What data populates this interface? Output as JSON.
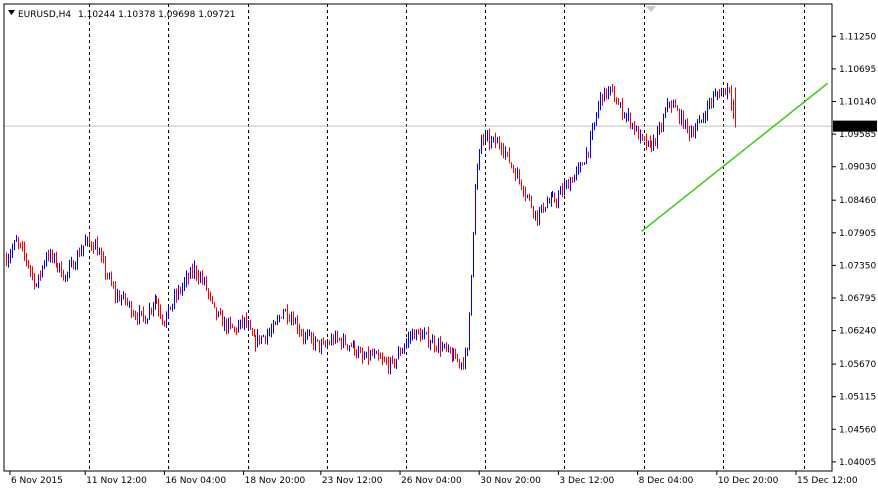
{
  "header": {
    "symbol": "EURUSD,H4",
    "ohlc": "1.10244 1.10378 1.09698 1.09721"
  },
  "price_tag": {
    "value": "1.09721"
  },
  "colors": {
    "bull": "#0000ff",
    "bear": "#ff0000",
    "trendline": "#44cc22",
    "grid": "#000000",
    "price_line": "#c0c0c0",
    "price_tag_bg": "#000000",
    "price_tag_text": "#ffffff"
  },
  "chart_data": {
    "type": "candlestick",
    "title": "EURUSD,H4",
    "ylim": [
      1.0385,
      1.118
    ],
    "y_ticks": [
      "1.11250",
      "1.10695",
      "1.10140",
      "1.09585",
      "1.09030",
      "1.08460",
      "1.07905",
      "1.07350",
      "1.06795",
      "1.06240",
      "1.05670",
      "1.05115",
      "1.04560",
      "1.04005"
    ],
    "x_ticks": [
      "6 Nov 2015",
      "11 Nov 12:00",
      "16 Nov 04:00",
      "18 Nov 20:00",
      "23 Nov 12:00",
      "26 Nov 04:00",
      "30 Nov 20:00",
      "3 Dec 12:00",
      "8 Dec 04:00",
      "10 Dec 20:00",
      "15 Dec 12:00"
    ],
    "x_tick_pos": [
      2,
      40,
      80,
      120,
      159,
      199,
      239,
      279,
      319,
      359,
      399
    ],
    "vertical_grid_at": [
      42,
      82,
      122,
      162,
      202,
      242,
      282,
      322,
      362,
      403
    ],
    "bar_count": 430,
    "current_price": 1.09721,
    "trendline": {
      "start": {
        "bar": 321,
        "price": 1.0793
      },
      "end": {
        "bar": 415,
        "price": 1.1045
      }
    },
    "anchors": [
      [
        0,
        1.0747
      ],
      [
        5,
        1.0775
      ],
      [
        10,
        1.0745
      ],
      [
        15,
        1.07
      ],
      [
        20,
        1.0755
      ],
      [
        25,
        1.074
      ],
      [
        30,
        1.0715
      ],
      [
        35,
        1.0745
      ],
      [
        40,
        1.0775
      ],
      [
        45,
        1.077
      ],
      [
        50,
        1.0725
      ],
      [
        55,
        1.0685
      ],
      [
        60,
        1.0675
      ],
      [
        65,
        1.0652
      ],
      [
        70,
        1.0645
      ],
      [
        75,
        1.068
      ],
      [
        80,
        1.064
      ],
      [
        85,
        1.0678
      ],
      [
        90,
        1.0705
      ],
      [
        95,
        1.0728
      ],
      [
        100,
        1.0705
      ],
      [
        105,
        1.0655
      ],
      [
        110,
        1.0635
      ],
      [
        115,
        1.0625
      ],
      [
        120,
        1.064
      ],
      [
        125,
        1.0605
      ],
      [
        130,
        1.0615
      ],
      [
        135,
        1.0625
      ],
      [
        140,
        1.066
      ],
      [
        145,
        1.0645
      ],
      [
        150,
        1.0615
      ],
      [
        155,
        1.0605
      ],
      [
        160,
        1.0595
      ],
      [
        165,
        1.061
      ],
      [
        170,
        1.0605
      ],
      [
        175,
        1.0598
      ],
      [
        180,
        1.0575
      ],
      [
        185,
        1.0582
      ],
      [
        190,
        1.057
      ],
      [
        195,
        1.0565
      ],
      [
        200,
        1.0595
      ],
      [
        205,
        1.062
      ],
      [
        210,
        1.0615
      ],
      [
        215,
        1.0605
      ],
      [
        220,
        1.0595
      ],
      [
        225,
        1.058
      ],
      [
        230,
        1.057
      ],
      [
        233,
        1.0585
      ],
      [
        237,
        1.0868
      ],
      [
        240,
        1.0952
      ],
      [
        245,
        1.0945
      ],
      [
        250,
        1.0942
      ],
      [
        255,
        1.0905
      ],
      [
        260,
        1.0875
      ],
      [
        265,
        1.0838
      ],
      [
        268,
        1.0818
      ],
      [
        272,
        1.084
      ],
      [
        278,
        1.0848
      ],
      [
        285,
        1.088
      ],
      [
        290,
        1.09
      ],
      [
        295,
        1.0945
      ],
      [
        300,
        1.1022
      ],
      [
        305,
        1.1032
      ],
      [
        310,
        1.1002
      ],
      [
        315,
        1.0982
      ],
      [
        320,
        1.095
      ],
      [
        325,
        1.0935
      ],
      [
        330,
        1.0962
      ],
      [
        335,
        1.1015
      ],
      [
        340,
        1.099
      ],
      [
        345,
        1.0962
      ],
      [
        350,
        1.0975
      ],
      [
        355,
        1.1012
      ],
      [
        360,
        1.103
      ],
      [
        365,
        1.1038
      ],
      [
        368,
        1.0972
      ]
    ]
  }
}
